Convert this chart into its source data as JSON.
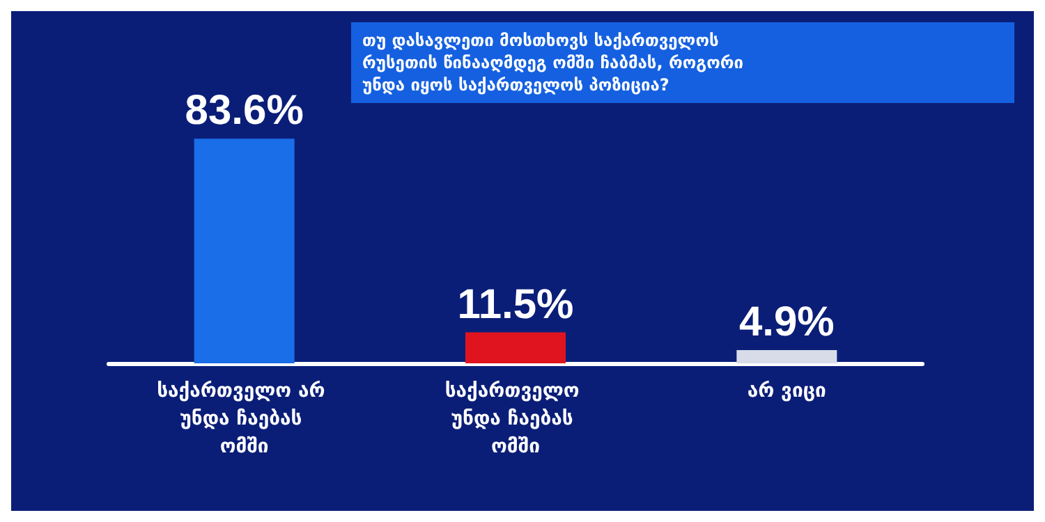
{
  "chart_data": {
    "type": "bar",
    "title": "თუ დასავლეთი მოსთხოვს საქართველოს რუსეთის წინააღმდეგ ომში ჩაბმას, როგორი უნდა იყოს საქართველოს პოზიცია?",
    "categories": [
      "საქართველო არ უნდა ჩაებას ომში",
      "საქართველო უნდა ჩაებას ომში",
      "არ ვიცი"
    ],
    "values": [
      83.6,
      11.5,
      4.9
    ],
    "colors": [
      "#1a6ee8",
      "#e0141e",
      "#d8dce8"
    ],
    "value_labels": [
      "83.6%",
      "11.5%",
      "4.9%"
    ]
  }
}
